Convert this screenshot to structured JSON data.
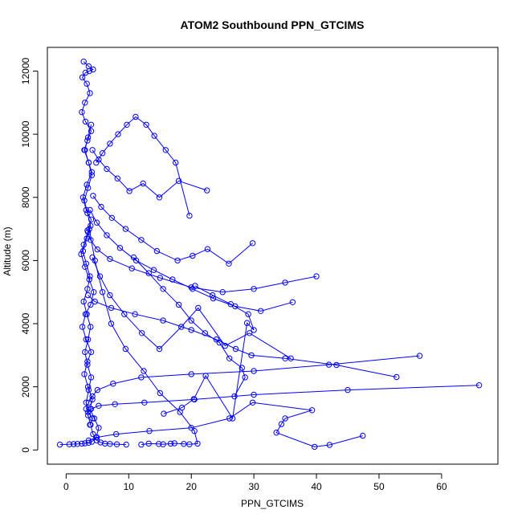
{
  "chart_data": {
    "type": "line",
    "title": "ATOM2 Southbound PPN_GTCIMS",
    "xlabel": "PPN_GTCIMS",
    "ylabel": "Altitude (m)",
    "xlim": [
      -3,
      69
    ],
    "ylim": [
      -450,
      12750
    ],
    "x_ticks": [
      0,
      10,
      20,
      30,
      40,
      50,
      60
    ],
    "y_ticks": [
      0,
      2000,
      4000,
      6000,
      8000,
      10000,
      12000
    ],
    "x_tick_labels": [
      "0",
      "10",
      "20",
      "30",
      "40",
      "50",
      "60"
    ],
    "y_tick_labels": [
      "0",
      "2000",
      "4000",
      "6000",
      "8000",
      "10000",
      "12000"
    ],
    "grid": false,
    "legend": "none",
    "colors": {
      "series": "#0000ff",
      "axis": "#000000",
      "background": "#ffffff"
    },
    "marker": "open-circle",
    "series": [
      {
        "x": [
          -1.0,
          0.5,
          1.2,
          1.8,
          2.5,
          3.0,
          3.6,
          4.1,
          4.8,
          5.2,
          4.5,
          3.8,
          4.2,
          3.5,
          2.9,
          3.4,
          4.0,
          3.2,
          2.6,
          3.1,
          3.9,
          4.4,
          3.7,
          3.0,
          2.4,
          2.8,
          3.5,
          4.0,
          3.2,
          2.7,
          3.3,
          4.1,
          3.6,
          2.9,
          3.4,
          4.0,
          3.1,
          2.5,
          3.0,
          3.8,
          3.3,
          2.6,
          3.1,
          3.7,
          4.3,
          3.6,
          2.8
        ],
        "y": [
          170,
          180,
          185,
          190,
          200,
          210,
          230,
          260,
          400,
          700,
          1000,
          1300,
          1600,
          2000,
          2400,
          2800,
          3100,
          3500,
          3900,
          4300,
          4600,
          5000,
          5400,
          5800,
          6200,
          6500,
          6900,
          7300,
          7600,
          8000,
          8400,
          8800,
          9100,
          9500,
          9800,
          10100,
          10400,
          10700,
          11000,
          11300,
          11600,
          11800,
          11950,
          12000,
          12050,
          12150,
          12300
        ]
      },
      {
        "x": [
          9.6,
          8.1,
          7.0,
          6.2,
          5.5,
          4.9,
          4.3,
          3.9,
          3.5,
          3.2,
          3.6,
          4.0,
          3.4,
          3.0,
          3.5,
          3.9,
          3.3,
          2.8,
          3.4,
          3.8,
          3.2,
          2.7,
          3.3,
          3.9,
          3.4,
          2.9,
          3.5,
          4.1,
          3.6,
          3.0,
          3.5,
          4.0
        ],
        "y": [
          170,
          180,
          190,
          200,
          240,
          300,
          500,
          800,
          1100,
          1500,
          1900,
          2300,
          2700,
          3100,
          3500,
          3900,
          4300,
          4700,
          5100,
          5500,
          5900,
          6300,
          6700,
          7100,
          7500,
          7900,
          8300,
          8700,
          9100,
          9500,
          9900,
          10300
        ]
      },
      {
        "x": [
          12.0,
          13.2,
          14.8,
          15.5,
          16.7,
          17.3,
          18.8,
          19.7,
          21.0,
          20.5,
          18.2,
          15.0,
          12.4,
          9.5,
          7.2,
          5.8,
          4.6,
          3.7
        ],
        "y": [
          170,
          200,
          190,
          180,
          200,
          210,
          190,
          180,
          200,
          600,
          1200,
          1800,
          2500,
          3200,
          4000,
          5000,
          6000,
          7000
        ]
      },
      {
        "x": [
          66.0,
          45.0,
          30.0,
          20.5,
          12.5,
          7.8,
          5.2,
          4.0,
          3.5,
          4.2,
          3.8
        ],
        "y": [
          2050,
          1900,
          1750,
          1600,
          1500,
          1450,
          1400,
          1300,
          1200,
          1000,
          800
        ]
      },
      {
        "x": [
          56.5,
          42.0,
          30.0,
          20.0,
          12.0,
          7.5,
          5.0,
          4.2,
          3.6,
          3.2
        ],
        "y": [
          2980,
          2700,
          2500,
          2400,
          2300,
          2100,
          1900,
          1700,
          1500,
          1300
        ]
      },
      {
        "x": [
          52.8,
          43.2,
          35.0,
          29.6,
          27.1,
          24.0,
          20.0,
          15.5,
          11.0,
          7.2,
          4.6,
          3.5
        ],
        "y": [
          2310,
          2690,
          2900,
          3000,
          3200,
          3500,
          3800,
          4100,
          4300,
          4500,
          4700,
          4900
        ]
      },
      {
        "x": [
          47.4,
          42.1,
          39.7,
          33.6,
          34.4,
          35.0,
          39.3,
          29.8,
          26.1,
          20.0,
          13.3,
          8.0,
          4.9,
          3.6
        ],
        "y": [
          450,
          160,
          100,
          550,
          820,
          1000,
          1260,
          1500,
          1000,
          700,
          600,
          500,
          400,
          300
        ]
      },
      {
        "x": [
          40.0,
          35.0,
          30.0,
          25.0,
          20.0,
          15.0,
          10.5,
          7.0,
          5.0,
          3.9,
          3.4
        ],
        "y": [
          5500,
          5300,
          5100,
          5000,
          5150,
          5450,
          5750,
          6050,
          6350,
          6650,
          6950
        ]
      },
      {
        "x": [
          36.2,
          31.1,
          27.0,
          23.5,
          20.2,
          17.0,
          14.0,
          11.2,
          8.6,
          6.5,
          4.9,
          3.8
        ],
        "y": [
          4680,
          4400,
          4550,
          4800,
          5100,
          5400,
          5700,
          6000,
          6400,
          6800,
          7200,
          7600
        ]
      },
      {
        "x": [
          35.9,
          29.3,
          25.4,
          21.1,
          18.4,
          14.9,
          12.1,
          9.3,
          7.0,
          5.4,
          4.2
        ],
        "y": [
          2900,
          3700,
          3300,
          4500,
          3900,
          3200,
          3700,
          4300,
          4900,
          5500,
          6100
        ]
      },
      {
        "x": [
          29.8,
          26.0,
          22.6,
          20.2,
          17.8,
          14.5,
          12.0,
          9.5,
          7.3,
          5.6,
          4.3
        ],
        "y": [
          6550,
          5900,
          6360,
          6150,
          6000,
          6300,
          6650,
          7000,
          7350,
          7700,
          8050
        ]
      },
      {
        "x": [
          22.5,
          18.0,
          14.9,
          12.3,
          10.1,
          8.2,
          6.5,
          5.2,
          4.2
        ],
        "y": [
          8220,
          8520,
          8000,
          8440,
          8200,
          8600,
          8900,
          9200,
          9500
        ]
      },
      {
        "x": [
          19.7,
          17.5,
          15.9,
          14.1,
          12.8,
          11.1,
          9.7,
          8.3,
          7.0,
          5.8,
          4.8
        ],
        "y": [
          7420,
          9100,
          9500,
          9950,
          10300,
          10550,
          10300,
          10000,
          9700,
          9400,
          9100
        ]
      },
      {
        "x": [
          26.9,
          28.6,
          28.1,
          26.1,
          24.5,
          22.2,
          20.0,
          18.0,
          15.5,
          13.2,
          10.8
        ],
        "y": [
          1700,
          2300,
          2600,
          2900,
          3400,
          3700,
          4100,
          4600,
          5100,
          5600,
          6100
        ]
      },
      {
        "x": [
          15.6,
          18.5,
          20.4,
          22.3,
          26.6,
          28.9,
          30.0,
          29.1,
          26.3,
          23.4,
          20.6
        ],
        "y": [
          1150,
          1340,
          1610,
          2350,
          1000,
          4020,
          3800,
          4300,
          4620,
          4900,
          5200
        ]
      }
    ]
  }
}
